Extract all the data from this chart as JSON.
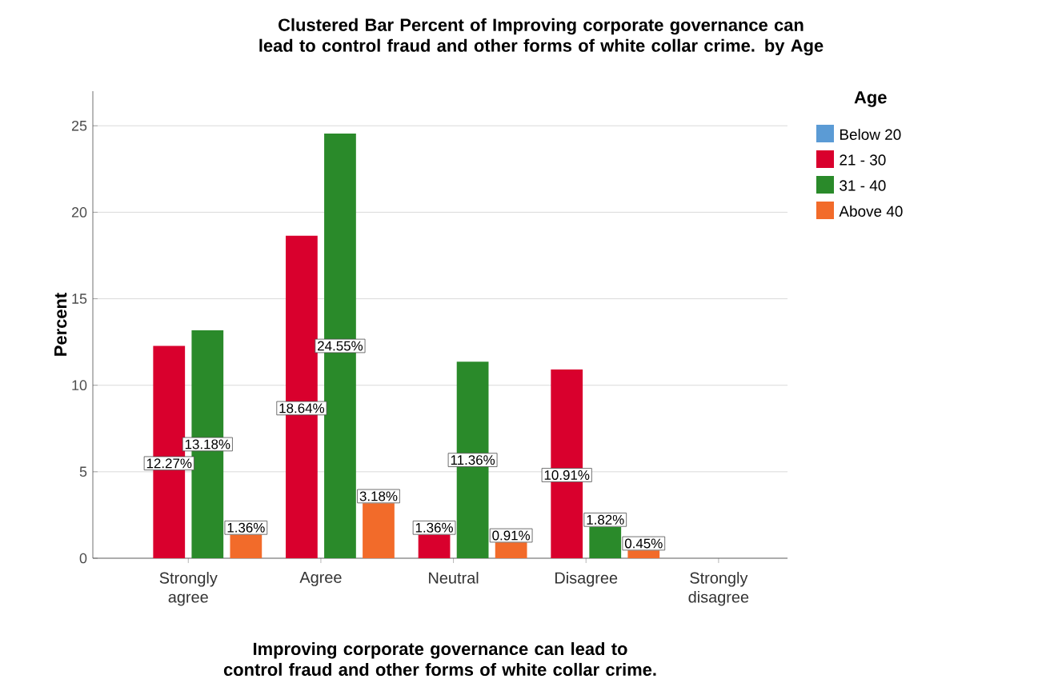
{
  "chart_data": {
    "type": "bar",
    "title": "Clustered Bar Percent of Improving corporate governance can lead to control fraud and other forms of white collar crime. by Age",
    "xlabel": "Improving corporate governance can lead to control fraud and other forms of white collar crime.",
    "ylabel": "Percent",
    "legend_title": "Age",
    "categories": [
      "Strongly agree",
      "Agree",
      "Neutral",
      "Disagree",
      "Strongly disagree"
    ],
    "series": [
      {
        "name": "Below 20",
        "color": "#5b9bd5",
        "values": [
          null,
          null,
          null,
          null,
          null
        ],
        "value_labels": [
          null,
          null,
          null,
          null,
          null
        ]
      },
      {
        "name": "21 - 30",
        "color": "#d9002d",
        "values": [
          12.27,
          18.64,
          1.36,
          10.91,
          null
        ],
        "value_labels": [
          "12.27%",
          "18.64%",
          "1.36%",
          "10.91%",
          null
        ]
      },
      {
        "name": "31 - 40",
        "color": "#2a8a2a",
        "values": [
          13.18,
          24.55,
          11.36,
          1.82,
          null
        ],
        "value_labels": [
          "13.18%",
          "24.55%",
          "11.36%",
          "1.82%",
          null
        ]
      },
      {
        "name": "Above 40",
        "color": "#f26b2a",
        "values": [
          1.36,
          3.18,
          0.91,
          0.45,
          null
        ],
        "value_labels": [
          "1.36%",
          "3.18%",
          "0.91%",
          "0.45%",
          null
        ]
      }
    ],
    "ylim": [
      0,
      27
    ],
    "yticks": [
      0,
      5,
      10,
      15,
      20,
      25
    ],
    "grid": "y",
    "legend": "top right"
  }
}
